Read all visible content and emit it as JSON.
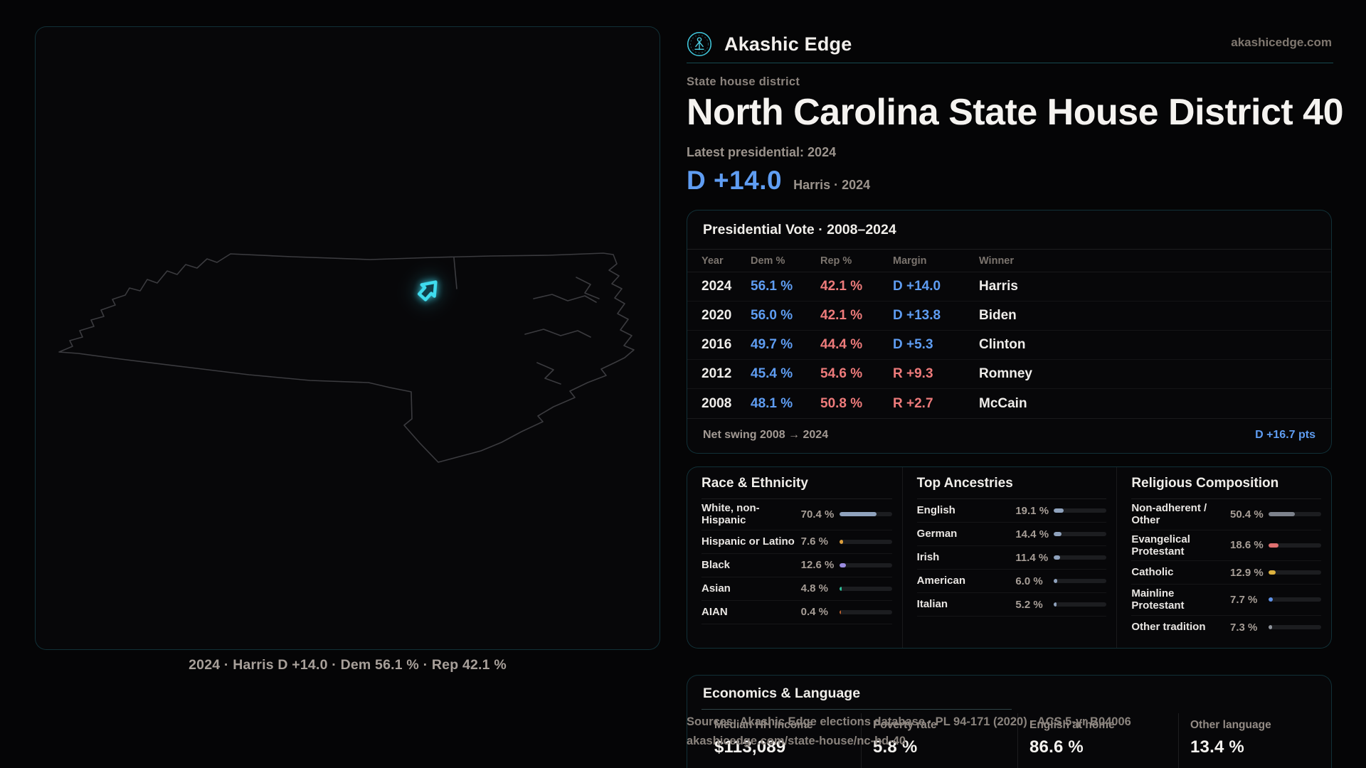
{
  "theme": {
    "dem": "#5f9df2",
    "rep": "#ee7b7b",
    "accent": "#3cc9df"
  },
  "brand": {
    "name": "Akashic Edge",
    "domain": "akashicedge.com",
    "logo_icon": "akashic-emblem"
  },
  "header": {
    "kicker": "State house district",
    "title": "North Carolina State House District 40",
    "latest_label": "Latest presidential: 2024",
    "headline_margin": "D +14.0",
    "headline_context": "Harris · 2024"
  },
  "map": {
    "caption": "2024 · Harris D +14.0 · Dem 56.1 % · Rep 42.1 %"
  },
  "presidential": {
    "title": "Presidential Vote · 2008–2024",
    "columns": [
      "Year",
      "Dem %",
      "Rep %",
      "Margin",
      "Winner"
    ],
    "rows": [
      {
        "year": "2024",
        "dem": "56.1 %",
        "rep": "42.1 %",
        "margin": "D +14.0",
        "winner": "Harris",
        "margin_color": "#5f9df2"
      },
      {
        "year": "2020",
        "dem": "56.0 %",
        "rep": "42.1 %",
        "margin": "D +13.8",
        "winner": "Biden",
        "margin_color": "#5f9df2"
      },
      {
        "year": "2016",
        "dem": "49.7 %",
        "rep": "44.4 %",
        "margin": "D +5.3",
        "winner": "Clinton",
        "margin_color": "#5f9df2"
      },
      {
        "year": "2012",
        "dem": "45.4 %",
        "rep": "54.6 %",
        "margin": "R +9.3",
        "winner": "Romney",
        "margin_color": "#ee7b7b"
      },
      {
        "year": "2008",
        "dem": "48.1 %",
        "rep": "50.8 %",
        "margin": "R +2.7",
        "winner": "McCain",
        "margin_color": "#ee7b7b"
      }
    ],
    "net_swing_label": "Net swing 2008 → 2024",
    "net_swing_value": "D +16.7 pts"
  },
  "race": {
    "title": "Race & Ethnicity",
    "rows": [
      {
        "label": "White, non-Hispanic",
        "value": "70.4 %",
        "pct": 70.4,
        "color": "#8fa2bd"
      },
      {
        "label": "Hispanic or Latino",
        "value": "7.6 %",
        "pct": 7.6,
        "color": "#dd9f3c"
      },
      {
        "label": "Black",
        "value": "12.6 %",
        "pct": 12.6,
        "color": "#9b8ce0"
      },
      {
        "label": "Asian",
        "value": "4.8 %",
        "pct": 4.8,
        "color": "#30c29b"
      },
      {
        "label": "AIAN",
        "value": "0.4 %",
        "pct": 0.4,
        "color": "#bb5f2e"
      }
    ]
  },
  "ancestries": {
    "title": "Top Ancestries",
    "rows": [
      {
        "label": "English",
        "value": "19.1 %",
        "pct": 19.1,
        "color": "#8fa2bd"
      },
      {
        "label": "German",
        "value": "14.4 %",
        "pct": 14.4,
        "color": "#8fa2bd"
      },
      {
        "label": "Irish",
        "value": "11.4 %",
        "pct": 11.4,
        "color": "#8fa2bd"
      },
      {
        "label": "American",
        "value": "6.0 %",
        "pct": 6.0,
        "color": "#8fa2bd"
      },
      {
        "label": "Italian",
        "value": "5.2 %",
        "pct": 5.2,
        "color": "#8fa2bd"
      }
    ]
  },
  "religion": {
    "title": "Religious Composition",
    "rows": [
      {
        "label": "Non-adherent / Other",
        "value": "50.4 %",
        "pct": 50.4,
        "color": "#7d828c"
      },
      {
        "label": "Evangelical Protestant",
        "value": "18.6 %",
        "pct": 18.6,
        "color": "#e07070"
      },
      {
        "label": "Catholic",
        "value": "12.9 %",
        "pct": 12.9,
        "color": "#ddb23f"
      },
      {
        "label": "Mainline Protestant",
        "value": "7.7 %",
        "pct": 7.7,
        "color": "#5f92e8"
      },
      {
        "label": "Other tradition",
        "value": "7.3 %",
        "pct": 7.3,
        "color": "#8f949c"
      }
    ]
  },
  "economics": {
    "title": "Economics & Language",
    "stats": [
      {
        "label": "Median HH income",
        "value": "$113,089"
      },
      {
        "label": "Poverty rate",
        "value": "5.8 %"
      },
      {
        "label": "English at home",
        "value": "86.6 %"
      },
      {
        "label": "Other language",
        "value": "13.4 %"
      }
    ]
  },
  "footer": {
    "line1": "Sources: Akashic Edge elections database · PL 94-171 (2020) · ACS 5-yr B04006",
    "line2": "akashicedge.com/state-house/nc-hd-40"
  }
}
